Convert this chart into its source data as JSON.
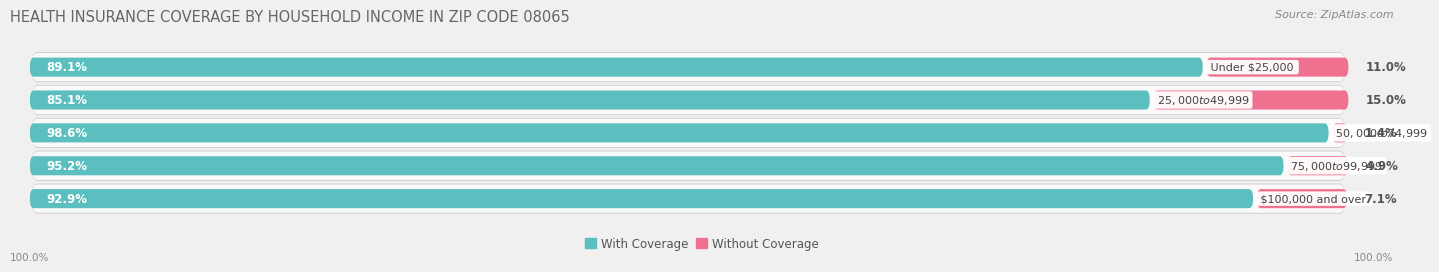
{
  "title": "HEALTH INSURANCE COVERAGE BY HOUSEHOLD INCOME IN ZIP CODE 08065",
  "source": "Source: ZipAtlas.com",
  "categories": [
    "Under $25,000",
    "$25,000 to $49,999",
    "$50,000 to $74,999",
    "$75,000 to $99,999",
    "$100,000 and over"
  ],
  "with_coverage": [
    89.1,
    85.1,
    98.6,
    95.2,
    92.9
  ],
  "without_coverage": [
    11.0,
    15.0,
    1.4,
    4.9,
    7.1
  ],
  "color_with": "#5BBFBF",
  "color_without": "#F07090",
  "color_without_light": "#F4A0B8",
  "bar_height": 0.58,
  "background_color": "#f0f0f0",
  "bar_background": "#e8e8e8",
  "bar_inner_bg": "#f8f8f8",
  "legend_with": "With Coverage",
  "legend_without": "Without Coverage",
  "xlim_left_label": "100.0%",
  "xlim_right_label": "100.0%",
  "title_fontsize": 10.5,
  "source_fontsize": 8,
  "bar_label_fontsize": 8.5,
  "category_label_fontsize": 8,
  "axis_label_fontsize": 7.5,
  "total_bar_width": 100
}
